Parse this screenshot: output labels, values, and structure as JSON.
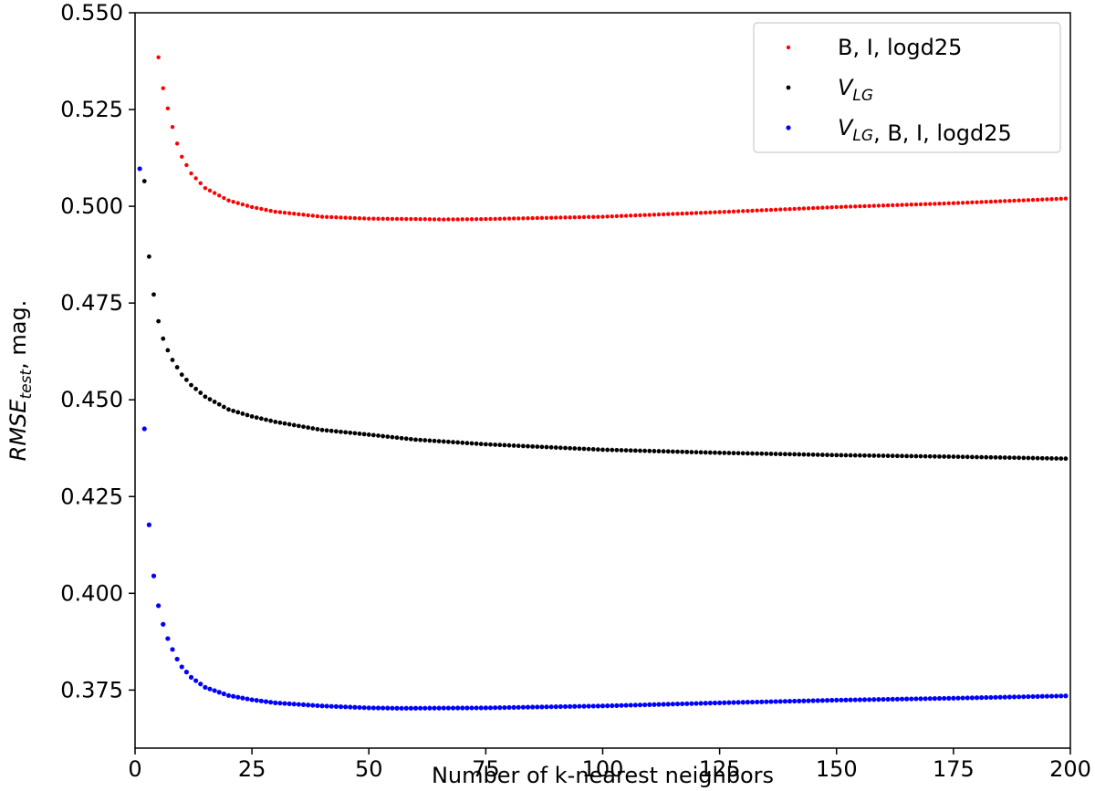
{
  "chart_data": {
    "type": "scatter",
    "title": "",
    "xlabel": "Number of k-nearest neighbors",
    "ylabel_main": "RMSE",
    "ylabel_sub": "test",
    "ylabel_suffix": ", mag.",
    "xlim": [
      0,
      200
    ],
    "ylim": [
      0.36,
      0.55
    ],
    "xticks": [
      0,
      25,
      50,
      75,
      100,
      125,
      150,
      175,
      200
    ],
    "xtick_labels": [
      "0",
      "25",
      "50",
      "75",
      "100",
      "125",
      "150",
      "175",
      "200"
    ],
    "yticks": [
      0.375,
      0.4,
      0.425,
      0.45,
      0.475,
      0.5,
      0.525,
      0.55
    ],
    "ytick_labels": [
      "0.375",
      "0.400",
      "0.425",
      "0.450",
      "0.475",
      "0.500",
      "0.525",
      "0.550"
    ],
    "grid": false,
    "legend_position": "top-right",
    "series": [
      {
        "name": "B, I, logd25",
        "legend_parts": [
          {
            "text": "B, I, logd25",
            "sub": ""
          }
        ],
        "color": "#ff0000",
        "x": [
          5,
          6,
          7,
          8,
          9,
          10,
          12,
          15,
          20,
          25,
          30,
          40,
          50,
          60,
          66,
          75,
          100,
          125,
          150,
          175,
          199
        ],
        "y": [
          0.5385,
          0.5305,
          0.5253,
          0.5205,
          0.5162,
          0.5128,
          0.5085,
          0.5047,
          0.5015,
          0.4998,
          0.4986,
          0.4973,
          0.4968,
          0.4967,
          0.4966,
          0.4967,
          0.4973,
          0.4985,
          0.4998,
          0.5008,
          0.502
        ]
      },
      {
        "name": "V_LG",
        "legend_parts": [
          {
            "text": "V",
            "sub": "LG"
          }
        ],
        "color": "#000000",
        "x": [
          2,
          3,
          4,
          5,
          6,
          7,
          8,
          10,
          12,
          15,
          20,
          25,
          30,
          40,
          50,
          60,
          75,
          100,
          125,
          150,
          175,
          199
        ],
        "y": [
          0.5065,
          0.487,
          0.4772,
          0.4703,
          0.4658,
          0.4628,
          0.4603,
          0.4565,
          0.4538,
          0.4508,
          0.4475,
          0.4457,
          0.4443,
          0.4422,
          0.441,
          0.4397,
          0.4385,
          0.4371,
          0.4363,
          0.4357,
          0.4353,
          0.4348
        ]
      },
      {
        "name": "V_LG, B, I, logd25",
        "legend_parts": [
          {
            "text": "V",
            "sub": "LG"
          },
          {
            "text": ", B, I, logd25",
            "sub": ""
          }
        ],
        "color": "#0000ff",
        "x": [
          1,
          2,
          3,
          4,
          5,
          6,
          7,
          8,
          9,
          10,
          12,
          15,
          20,
          25,
          30,
          40,
          50,
          57,
          75,
          100,
          125,
          150,
          175,
          199
        ],
        "y": [
          0.5097,
          0.4425,
          0.4177,
          0.4045,
          0.3968,
          0.392,
          0.3883,
          0.3855,
          0.383,
          0.381,
          0.3783,
          0.3757,
          0.3736,
          0.3725,
          0.3717,
          0.3709,
          0.3704,
          0.3703,
          0.3704,
          0.3709,
          0.3717,
          0.3724,
          0.3729,
          0.3735
        ]
      }
    ]
  }
}
